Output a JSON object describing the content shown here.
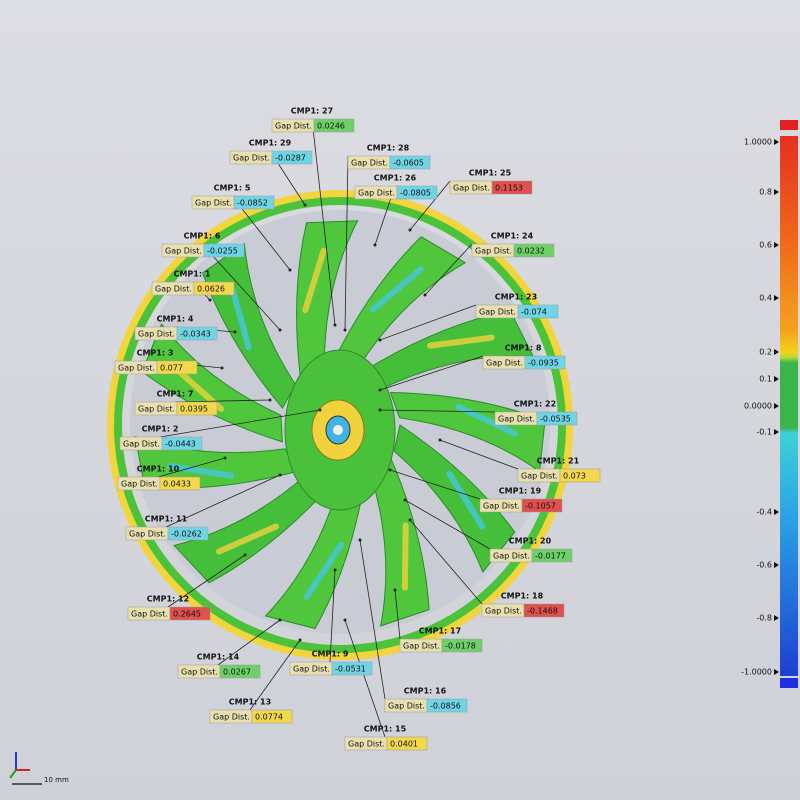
{
  "annotations": [
    {
      "label": "CMP1: 27",
      "field": "Gap Dist.",
      "value": "0.0246"
    },
    {
      "label": "CMP1: 29",
      "field": "Gap Dist.",
      "value": "-0.0287"
    },
    {
      "label": "CMP1: 28",
      "field": "Gap Dist.",
      "value": "-0.0605"
    },
    {
      "label": "CMP1: 26",
      "field": "Gap Dist.",
      "value": "-0.0805"
    },
    {
      "label": "CMP1: 25",
      "field": "Gap Dist.",
      "value": "0.1153"
    },
    {
      "label": "CMP1: 5",
      "field": "Gap Dist.",
      "value": "-0.0852"
    },
    {
      "label": "CMP1: 6",
      "field": "Gap Dist.",
      "value": "-0.0255"
    },
    {
      "label": "CMP1: 24",
      "field": "Gap Dist.",
      "value": "0.0232"
    },
    {
      "label": "CMP1: 1",
      "field": "Gap Dist.",
      "value": "0.0626"
    },
    {
      "label": "CMP1: 23",
      "field": "Gap Dist.",
      "value": "-0.074"
    },
    {
      "label": "CMP1: 4",
      "field": "Gap Dist.",
      "value": "-0.0343"
    },
    {
      "label": "CMP1: 3",
      "field": "Gap Dist.",
      "value": "0.077"
    },
    {
      "label": "CMP1: 8",
      "field": "Gap Dist.",
      "value": "-0.0935"
    },
    {
      "label": "CMP1: 7",
      "field": "Gap Dist.",
      "value": "0.0395"
    },
    {
      "label": "CMP1: 22",
      "field": "Gap Dist.",
      "value": "-0.0535"
    },
    {
      "label": "CMP1: 2",
      "field": "Gap Dist.",
      "value": "-0.0443"
    },
    {
      "label": "CMP1: 21",
      "field": "Gap Dist.",
      "value": "0.073"
    },
    {
      "label": "CMP1: 10",
      "field": "Gap Dist.",
      "value": "0.0433"
    },
    {
      "label": "CMP1: 19",
      "field": "Gap Dist.",
      "value": "-0.1057"
    },
    {
      "label": "CMP1: 11",
      "field": "Gap Dist.",
      "value": "-0.0262"
    },
    {
      "label": "CMP1: 20",
      "field": "Gap Dist.",
      "value": "-0.0177"
    },
    {
      "label": "CMP1: 18",
      "field": "Gap Dist.",
      "value": "-0.1468"
    },
    {
      "label": "CMP1: 12",
      "field": "Gap Dist.",
      "value": "0.2645"
    },
    {
      "label": "CMP1: 17",
      "field": "Gap Dist.",
      "value": "-0.0178"
    },
    {
      "label": "CMP1: 14",
      "field": "Gap Dist.",
      "value": "0.0267"
    },
    {
      "label": "CMP1: 9",
      "field": "Gap Dist.",
      "value": "-0.0531"
    },
    {
      "label": "CMP1: 16",
      "field": "Gap Dist.",
      "value": "-0.0856"
    },
    {
      "label": "CMP1: 13",
      "field": "Gap Dist.",
      "value": "0.0774"
    },
    {
      "label": "CMP1: 15",
      "field": "Gap Dist.",
      "value": "0.0401"
    }
  ],
  "color_scale": {
    "labels": [
      "1.0000",
      "0.8",
      "0.6",
      "0.4",
      "0.2",
      "0.1",
      "0.0000",
      "-0.1",
      "-0.4",
      "-0.6",
      "-0.8",
      "-1.0000"
    ]
  },
  "scale_bar": "10 mm"
}
